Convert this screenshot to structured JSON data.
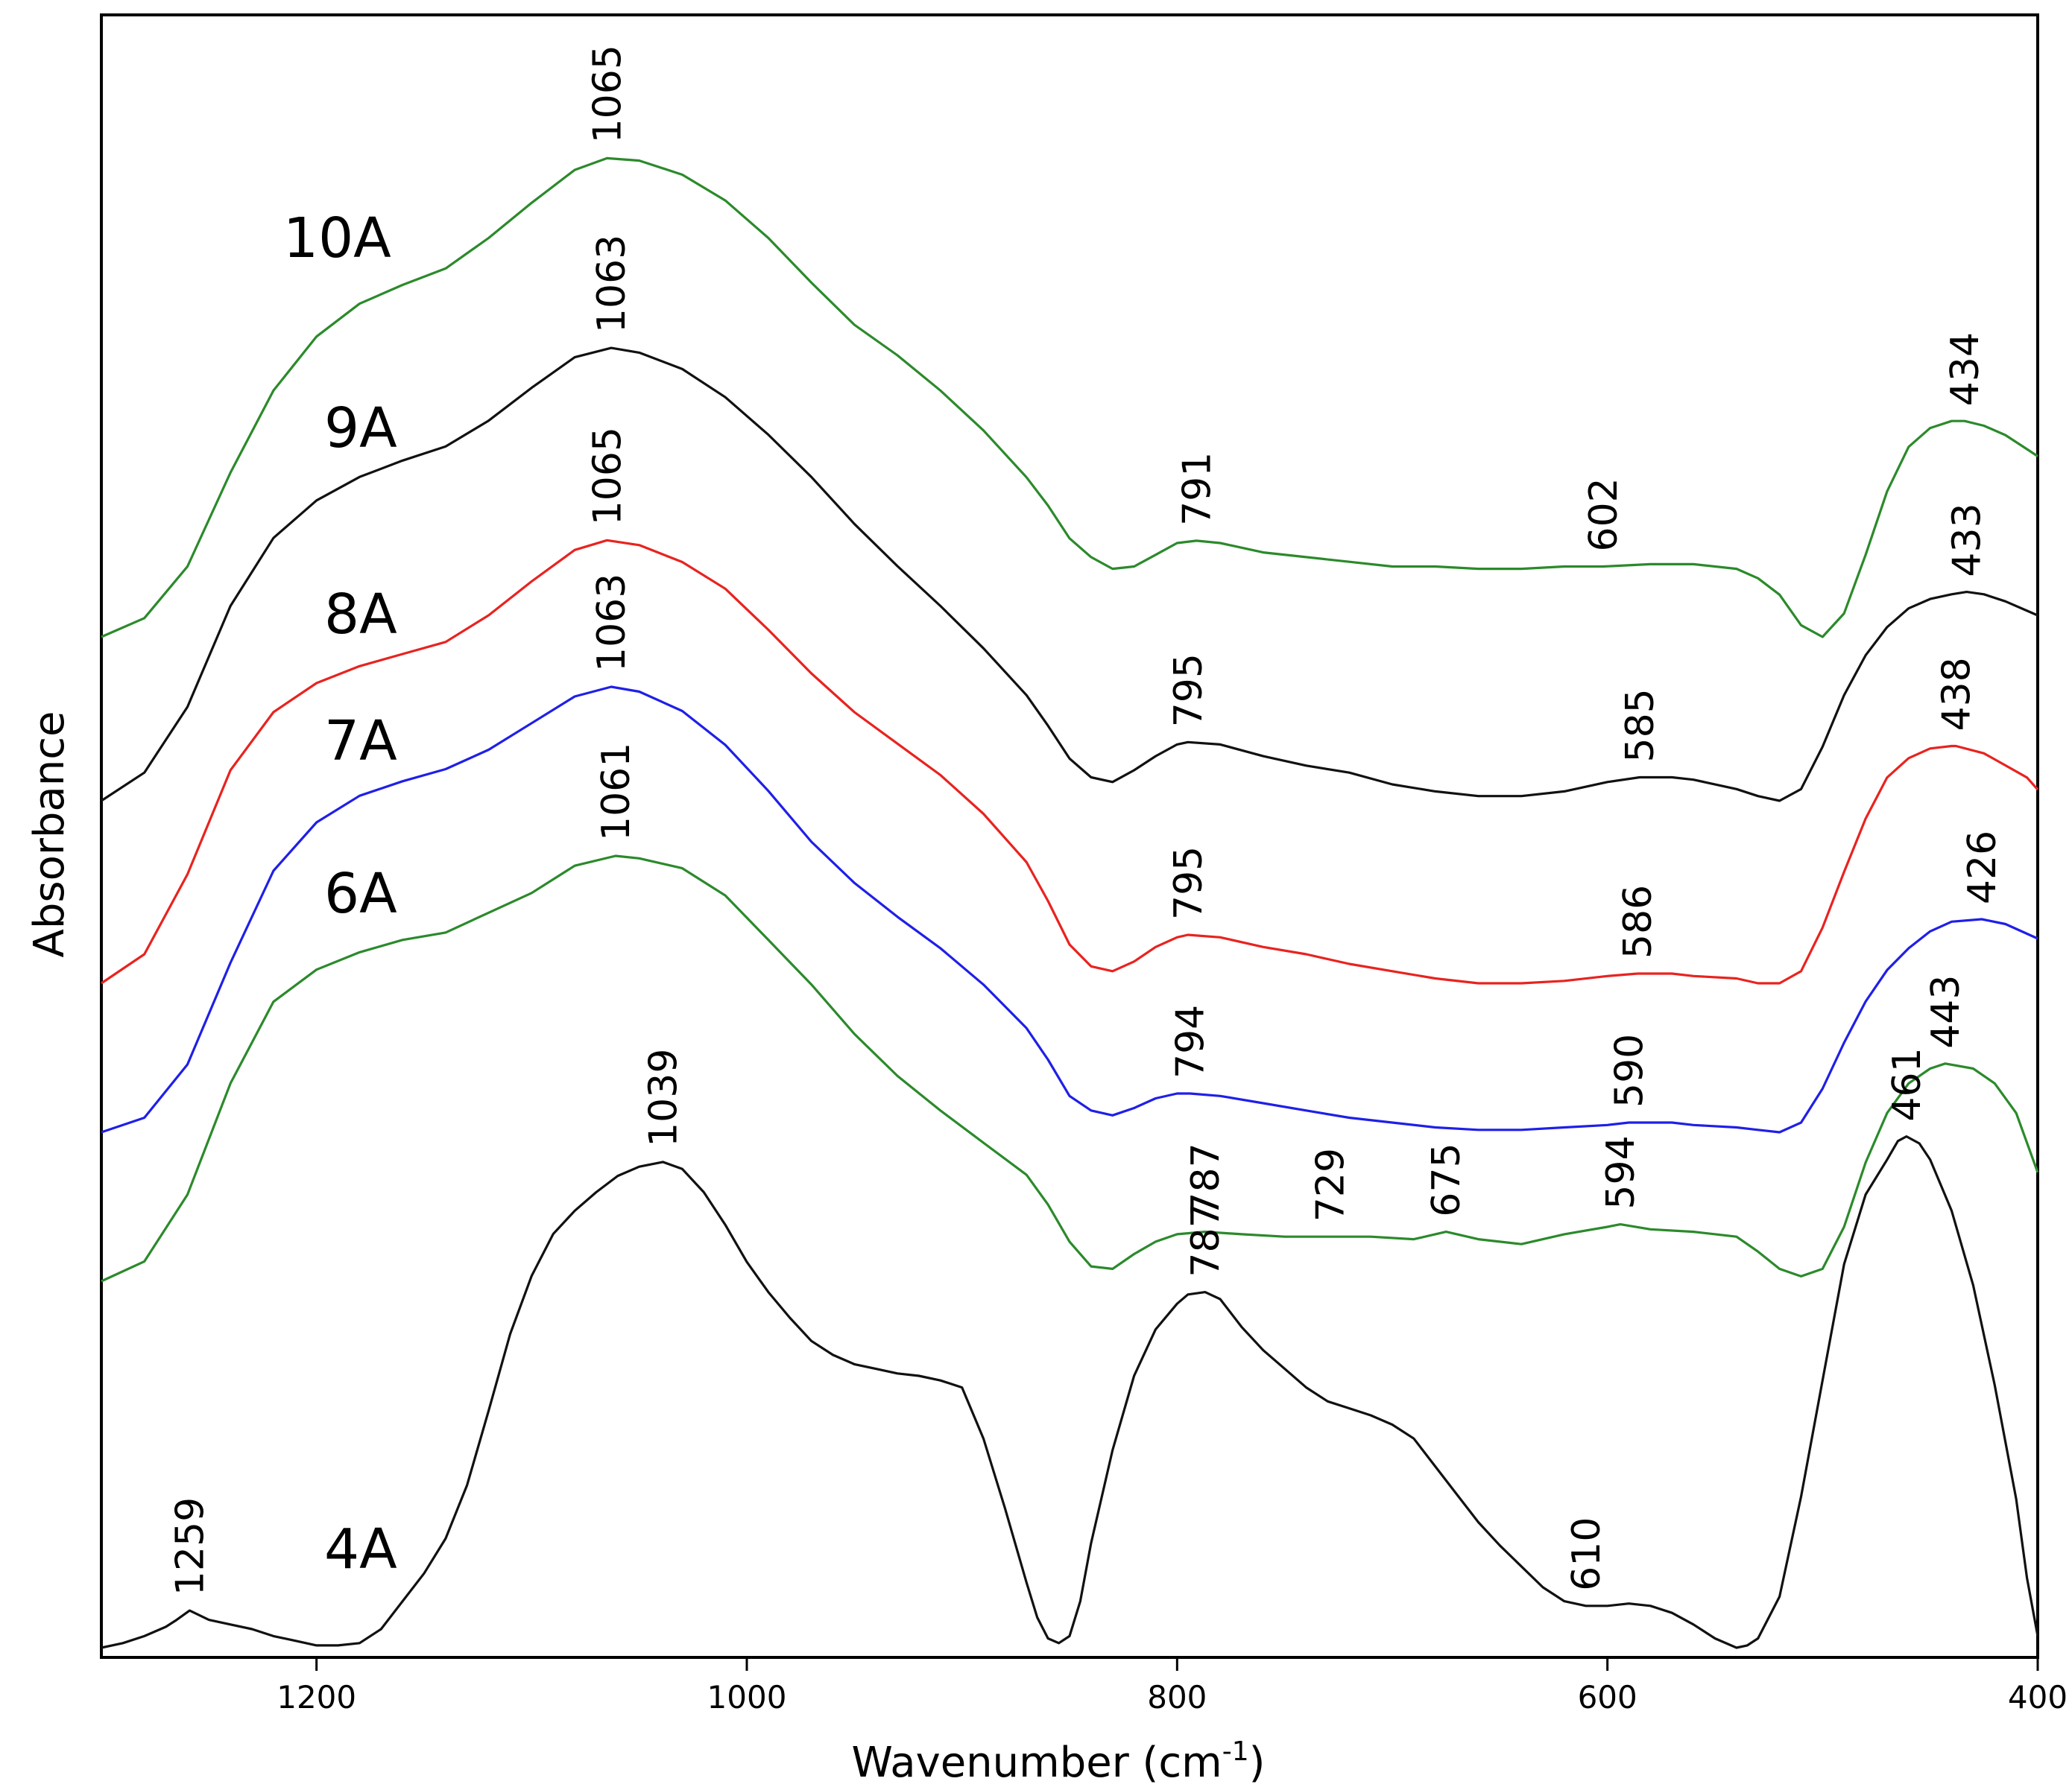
{
  "chart_data": {
    "type": "line",
    "title": "",
    "xlabel_main": "Wavenumber (cm",
    "xlabel_sup": "-1",
    "xlabel_close": ")",
    "ylabel": "Absorbance",
    "xlim": [
      1300,
      400
    ],
    "x_ticks": [
      "1200",
      "1000",
      "800",
      "600",
      "400"
    ],
    "x_tick_values": [
      1200,
      1000,
      800,
      600,
      400
    ],
    "yaxis_scale": "arbitrary units, spectra vertically offset",
    "series": [
      {
        "name": "10A",
        "color": "#2b8a2b",
        "offset": 0,
        "x": [
          1300,
          1280,
          1260,
          1240,
          1220,
          1200,
          1180,
          1160,
          1140,
          1120,
          1100,
          1080,
          1065,
          1050,
          1030,
          1010,
          990,
          970,
          950,
          930,
          910,
          890,
          870,
          860,
          850,
          840,
          830,
          820,
          810,
          800,
          791,
          780,
          760,
          740,
          720,
          700,
          680,
          660,
          640,
          620,
          602,
          580,
          560,
          540,
          530,
          520,
          510,
          500,
          490,
          480,
          470,
          460,
          450,
          440,
          434,
          425,
          415,
          405,
          400
        ],
        "y": [
          0.0,
          0.08,
          0.3,
          0.7,
          1.05,
          1.28,
          1.42,
          1.5,
          1.57,
          1.7,
          1.85,
          1.99,
          2.04,
          2.03,
          1.97,
          1.86,
          1.7,
          1.51,
          1.33,
          1.2,
          1.05,
          0.88,
          0.68,
          0.56,
          0.42,
          0.34,
          0.29,
          0.3,
          0.35,
          0.4,
          0.41,
          0.4,
          0.36,
          0.34,
          0.32,
          0.3,
          0.3,
          0.29,
          0.29,
          0.3,
          0.3,
          0.31,
          0.31,
          0.29,
          0.25,
          0.18,
          0.05,
          0.0,
          0.1,
          0.35,
          0.62,
          0.81,
          0.89,
          0.92,
          0.92,
          0.9,
          0.86,
          0.8,
          0.77
        ]
      },
      {
        "name": "9A",
        "color": "#111111",
        "offset": 0,
        "x": [
          1300,
          1280,
          1260,
          1240,
          1220,
          1200,
          1180,
          1160,
          1140,
          1120,
          1100,
          1080,
          1063,
          1050,
          1030,
          1010,
          990,
          970,
          950,
          930,
          910,
          890,
          870,
          860,
          850,
          840,
          830,
          820,
          810,
          800,
          795,
          780,
          760,
          740,
          720,
          700,
          680,
          660,
          640,
          620,
          600,
          585,
          570,
          560,
          540,
          530,
          520,
          510,
          500,
          490,
          480,
          470,
          460,
          450,
          440,
          433,
          425,
          415,
          405,
          400
        ],
        "y": [
          0.0,
          0.12,
          0.4,
          0.83,
          1.12,
          1.28,
          1.38,
          1.45,
          1.51,
          1.62,
          1.76,
          1.89,
          1.93,
          1.91,
          1.84,
          1.72,
          1.56,
          1.38,
          1.18,
          1.0,
          0.83,
          0.65,
          0.45,
          0.32,
          0.18,
          0.1,
          0.08,
          0.13,
          0.19,
          0.24,
          0.25,
          0.24,
          0.19,
          0.15,
          0.12,
          0.07,
          0.04,
          0.02,
          0.02,
          0.04,
          0.08,
          0.1,
          0.1,
          0.09,
          0.05,
          0.02,
          0.0,
          0.05,
          0.23,
          0.45,
          0.62,
          0.74,
          0.82,
          0.86,
          0.88,
          0.89,
          0.88,
          0.85,
          0.81,
          0.79
        ]
      },
      {
        "name": "8A",
        "color": "#e8231f",
        "offset": 0,
        "x": [
          1300,
          1280,
          1260,
          1240,
          1220,
          1200,
          1180,
          1160,
          1140,
          1120,
          1100,
          1080,
          1065,
          1050,
          1030,
          1010,
          990,
          970,
          950,
          930,
          910,
          890,
          870,
          860,
          850,
          840,
          830,
          820,
          810,
          800,
          795,
          780,
          760,
          740,
          720,
          700,
          680,
          660,
          640,
          620,
          600,
          586,
          570,
          560,
          540,
          530,
          520,
          510,
          500,
          490,
          480,
          470,
          460,
          450,
          440,
          438,
          425,
          415,
          405,
          400
        ],
        "y": [
          0.0,
          0.12,
          0.45,
          0.88,
          1.12,
          1.24,
          1.31,
          1.36,
          1.41,
          1.52,
          1.66,
          1.79,
          1.83,
          1.81,
          1.74,
          1.63,
          1.46,
          1.28,
          1.12,
          0.99,
          0.86,
          0.7,
          0.5,
          0.34,
          0.16,
          0.07,
          0.05,
          0.09,
          0.15,
          0.19,
          0.2,
          0.19,
          0.15,
          0.12,
          0.08,
          0.05,
          0.02,
          0.0,
          0.0,
          0.01,
          0.03,
          0.04,
          0.04,
          0.03,
          0.02,
          0.0,
          0.0,
          0.05,
          0.23,
          0.46,
          0.68,
          0.85,
          0.93,
          0.97,
          0.98,
          0.98,
          0.95,
          0.9,
          0.85,
          0.8
        ]
      },
      {
        "name": "7A",
        "color": "#1f1fe8",
        "offset": 0,
        "x": [
          1300,
          1280,
          1260,
          1240,
          1220,
          1200,
          1180,
          1160,
          1140,
          1120,
          1100,
          1080,
          1063,
          1050,
          1030,
          1010,
          990,
          970,
          950,
          930,
          910,
          890,
          870,
          860,
          850,
          840,
          830,
          820,
          810,
          800,
          794,
          780,
          760,
          740,
          720,
          700,
          680,
          660,
          640,
          620,
          600,
          590,
          570,
          560,
          540,
          530,
          520,
          510,
          500,
          490,
          480,
          470,
          460,
          450,
          440,
          426,
          415,
          405,
          400
        ],
        "y": [
          0.0,
          0.06,
          0.28,
          0.7,
          1.08,
          1.28,
          1.39,
          1.45,
          1.5,
          1.58,
          1.69,
          1.8,
          1.84,
          1.82,
          1.74,
          1.6,
          1.41,
          1.2,
          1.03,
          0.89,
          0.76,
          0.61,
          0.43,
          0.3,
          0.15,
          0.09,
          0.07,
          0.1,
          0.14,
          0.16,
          0.16,
          0.15,
          0.12,
          0.09,
          0.06,
          0.04,
          0.02,
          0.01,
          0.01,
          0.02,
          0.03,
          0.04,
          0.04,
          0.03,
          0.02,
          0.01,
          0.0,
          0.04,
          0.18,
          0.37,
          0.54,
          0.67,
          0.76,
          0.83,
          0.87,
          0.88,
          0.86,
          0.82,
          0.8
        ]
      },
      {
        "name": "6A",
        "color": "#2b8a2b",
        "offset": 0,
        "x": [
          1300,
          1280,
          1260,
          1240,
          1220,
          1200,
          1180,
          1160,
          1140,
          1120,
          1100,
          1080,
          1061,
          1050,
          1030,
          1010,
          990,
          970,
          950,
          930,
          910,
          890,
          870,
          860,
          850,
          840,
          830,
          820,
          810,
          800,
          787,
          770,
          750,
          729,
          710,
          690,
          675,
          660,
          640,
          620,
          600,
          594,
          580,
          560,
          540,
          530,
          520,
          510,
          500,
          490,
          480,
          470,
          460,
          450,
          443,
          430,
          420,
          410,
          400
        ],
        "y": [
          0.0,
          0.08,
          0.35,
          0.8,
          1.13,
          1.26,
          1.33,
          1.38,
          1.41,
          1.49,
          1.57,
          1.68,
          1.72,
          1.71,
          1.67,
          1.56,
          1.38,
          1.2,
          1.0,
          0.83,
          0.69,
          0.56,
          0.43,
          0.31,
          0.16,
          0.06,
          0.05,
          0.11,
          0.16,
          0.19,
          0.2,
          0.19,
          0.18,
          0.18,
          0.18,
          0.17,
          0.2,
          0.17,
          0.15,
          0.19,
          0.22,
          0.23,
          0.21,
          0.2,
          0.18,
          0.12,
          0.05,
          0.02,
          0.05,
          0.22,
          0.48,
          0.68,
          0.8,
          0.86,
          0.88,
          0.86,
          0.8,
          0.68,
          0.44
        ]
      },
      {
        "name": "4A",
        "color": "#111111",
        "offset": 0,
        "x": [
          1300,
          1290,
          1280,
          1270,
          1265,
          1259,
          1250,
          1240,
          1230,
          1220,
          1210,
          1200,
          1190,
          1180,
          1170,
          1160,
          1150,
          1140,
          1130,
          1120,
          1110,
          1100,
          1090,
          1080,
          1070,
          1060,
          1050,
          1039,
          1030,
          1020,
          1010,
          1000,
          990,
          980,
          970,
          960,
          950,
          940,
          930,
          920,
          910,
          900,
          890,
          880,
          870,
          865,
          860,
          855,
          850,
          845,
          840,
          830,
          820,
          810,
          800,
          795,
          787,
          780,
          775,
          770,
          760,
          750,
          740,
          730,
          720,
          710,
          700,
          690,
          680,
          670,
          660,
          650,
          640,
          630,
          620,
          610,
          600,
          590,
          580,
          570,
          560,
          550,
          540,
          535,
          530,
          520,
          510,
          500,
          490,
          480,
          470,
          465,
          461,
          455,
          450,
          440,
          430,
          420,
          410,
          405,
          400
        ],
        "y": [
          0.0,
          0.02,
          0.05,
          0.09,
          0.12,
          0.16,
          0.12,
          0.1,
          0.08,
          0.05,
          0.03,
          0.01,
          0.01,
          0.02,
          0.08,
          0.2,
          0.32,
          0.47,
          0.7,
          1.02,
          1.35,
          1.6,
          1.78,
          1.88,
          1.96,
          2.03,
          2.07,
          2.09,
          2.06,
          1.96,
          1.82,
          1.66,
          1.53,
          1.42,
          1.32,
          1.26,
          1.22,
          1.2,
          1.18,
          1.17,
          1.15,
          1.12,
          0.9,
          0.6,
          0.28,
          0.13,
          0.04,
          0.02,
          0.05,
          0.2,
          0.45,
          0.85,
          1.17,
          1.37,
          1.48,
          1.52,
          1.53,
          1.5,
          1.44,
          1.38,
          1.28,
          1.2,
          1.12,
          1.06,
          1.03,
          1.0,
          0.96,
          0.9,
          0.78,
          0.66,
          0.54,
          0.44,
          0.35,
          0.26,
          0.2,
          0.18,
          0.18,
          0.19,
          0.18,
          0.15,
          0.1,
          0.04,
          0.0,
          0.01,
          0.04,
          0.22,
          0.65,
          1.15,
          1.65,
          1.95,
          2.1,
          2.18,
          2.2,
          2.17,
          2.1,
          1.88,
          1.56,
          1.13,
          0.64,
          0.3,
          0.05
        ]
      }
    ],
    "peak_labels": [
      {
        "series": "10A",
        "text": "1065",
        "x": 1065
      },
      {
        "series": "10A",
        "text": "791",
        "x": 791
      },
      {
        "series": "10A",
        "text": "602",
        "x": 602
      },
      {
        "series": "10A",
        "text": "434",
        "x": 434
      },
      {
        "series": "9A",
        "text": "1063",
        "x": 1063
      },
      {
        "series": "9A",
        "text": "795",
        "x": 795
      },
      {
        "series": "9A",
        "text": "585",
        "x": 585
      },
      {
        "series": "9A",
        "text": "433",
        "x": 433
      },
      {
        "series": "8A",
        "text": "1065",
        "x": 1065
      },
      {
        "series": "8A",
        "text": "795",
        "x": 795
      },
      {
        "series": "8A",
        "text": "586",
        "x": 586
      },
      {
        "series": "8A",
        "text": "438",
        "x": 438
      },
      {
        "series": "7A",
        "text": "1063",
        "x": 1063
      },
      {
        "series": "7A",
        "text": "794",
        "x": 794
      },
      {
        "series": "7A",
        "text": "590",
        "x": 590
      },
      {
        "series": "7A",
        "text": "426",
        "x": 426
      },
      {
        "series": "6A",
        "text": "1061",
        "x": 1061
      },
      {
        "series": "6A",
        "text": "787",
        "x": 787
      },
      {
        "series": "6A",
        "text": "729",
        "x": 729
      },
      {
        "series": "6A",
        "text": "675",
        "x": 675
      },
      {
        "series": "6A",
        "text": "594",
        "x": 594
      },
      {
        "series": "6A",
        "text": "443",
        "x": 443
      },
      {
        "series": "4A",
        "text": "1259",
        "x": 1259
      },
      {
        "series": "4A",
        "text": "1039",
        "x": 1039
      },
      {
        "series": "4A",
        "text": "787",
        "x": 787
      },
      {
        "series": "4A",
        "text": "610",
        "x": 610
      },
      {
        "series": "4A",
        "text": "461",
        "x": 461
      }
    ]
  }
}
